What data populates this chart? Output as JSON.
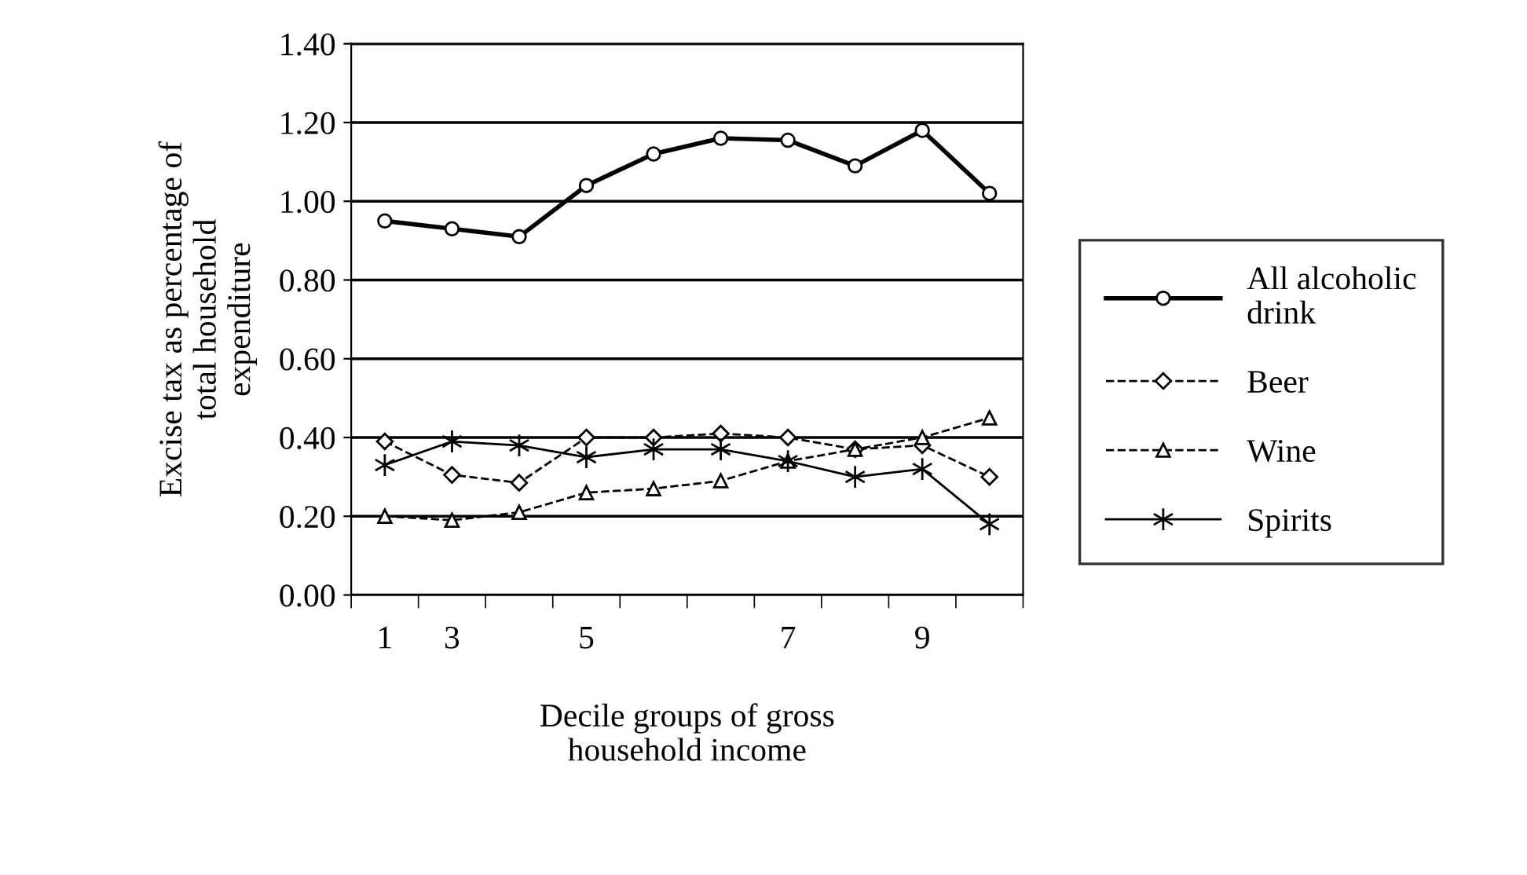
{
  "chart_data": {
    "type": "line",
    "xlabel": "Decile groups of gross\nhousehold income",
    "ylabel": "Excise tax as percentage of\ntotal household\nexpenditure",
    "categories": [
      "1",
      "3",
      null,
      "5",
      null,
      null,
      "7",
      null,
      "9",
      null
    ],
    "ylim": [
      0,
      1.4
    ],
    "yticks": [
      {
        "value": 0,
        "label": "0.00"
      },
      {
        "value": 0.2,
        "label": "0.20"
      },
      {
        "value": 0.4,
        "label": "0.40"
      },
      {
        "value": 0.6,
        "label": "0.60"
      },
      {
        "value": 0.8,
        "label": "0.80"
      },
      {
        "value": 1,
        "label": "1.00"
      },
      {
        "value": 1.2,
        "label": "1.20"
      },
      {
        "value": 1.4,
        "label": "1.40"
      }
    ],
    "grid": "y",
    "legend": "right",
    "series": [
      {
        "name": "All alcoholic\ndrink",
        "color": "#000000",
        "marker": "circle",
        "line_style": "solid",
        "values": [
          0.95,
          0.93,
          0.91,
          1.04,
          1.12,
          1.16,
          1.155,
          1.09,
          1.18,
          1.02
        ]
      },
      {
        "name": "Beer",
        "color": "#000000",
        "marker": "diamond",
        "line_style": "dashed",
        "values": [
          0.39,
          0.305,
          0.285,
          0.4,
          0.4,
          0.41,
          0.4,
          0.37,
          0.38,
          0.3
        ]
      },
      {
        "name": "Wine",
        "color": "#000000",
        "marker": "triangle",
        "line_style": "dashed",
        "values": [
          0.2,
          0.19,
          0.21,
          0.26,
          0.27,
          0.29,
          0.34,
          0.37,
          0.4,
          0.45
        ]
      },
      {
        "name": "Spirits",
        "color": "#000000",
        "marker": "cross",
        "line_style": "solid",
        "values": [
          0.33,
          0.39,
          0.38,
          0.35,
          0.37,
          0.37,
          0.34,
          0.3,
          0.32,
          0.18
        ]
      }
    ]
  }
}
